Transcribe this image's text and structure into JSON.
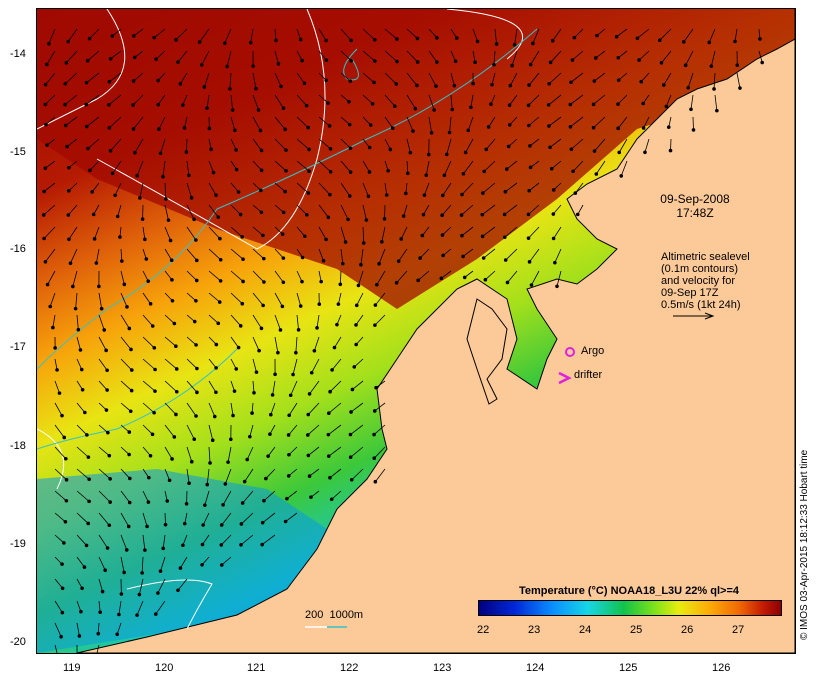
{
  "map": {
    "date_line1": "09-Sep-2008",
    "date_line2": "17:48Z",
    "sealevel_note": [
      "Altimetric sealevel",
      "(0.1m contours)",
      "and velocity for",
      "09-Sep 17Z",
      "0.5m/s (1kt 24h)"
    ],
    "argo_label": "Argo",
    "drifter_label": "drifter",
    "depth_legend": "200  1000m",
    "colorbar_title": "Temperature (°C) NOAA18_L3U 22% ql>=4",
    "colorbar_ticks": [
      "22",
      "23",
      "24",
      "25",
      "26",
      "27"
    ],
    "credit": "© IMOS 03-Apr-2015 18:12:33 Hobart time",
    "lat_ticks": [
      "-14",
      "-15",
      "-16",
      "-17",
      "-18",
      "-19",
      "-20"
    ],
    "lon_ticks": [
      "119",
      "120",
      "121",
      "122",
      "123",
      "124",
      "125",
      "126"
    ],
    "colors": {
      "land": "#fcc999",
      "depth_200": "#ffffff",
      "depth_1000": "#33c3c8",
      "argo": "#e020e0",
      "drifter": "#e020e0"
    }
  }
}
